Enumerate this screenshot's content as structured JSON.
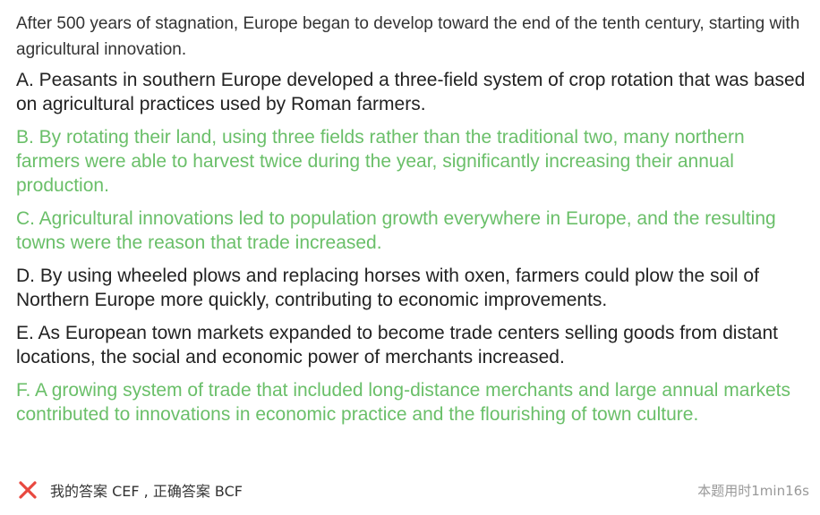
{
  "question": {
    "prompt": "After 500 years of stagnation, Europe began to develop toward the end of the tenth century, starting with agricultural innovation."
  },
  "options": [
    {
      "text": "A. Peasants in southern Europe developed a three-field system of crop rotation that was based on agricultural practices used by Roman farmers.",
      "correct": false
    },
    {
      "text": "B. By rotating their land, using three fields rather than the traditional two, many northern farmers were able to harvest twice during the year, significantly increasing their annual production.",
      "correct": true
    },
    {
      "text": "C. Agricultural innovations led to population growth everywhere in Europe, and the resulting towns were the reason that trade increased.",
      "correct": true
    },
    {
      "text": "D. By using wheeled plows and replacing horses with oxen, farmers could plow the soil of Northern Europe more quickly, contributing to economic improvements.",
      "correct": false
    },
    {
      "text": "E. As European town markets expanded to become trade centers selling goods from distant locations, the social and economic power of merchants increased.",
      "correct": false
    },
    {
      "text": "F. A growing system of trade that included long-distance merchants and large annual markets contributed to innovations in economic practice and the flourishing of town culture.",
      "correct": true
    }
  ],
  "result": {
    "icon": "wrong-x-icon",
    "text": "我的答案 CEF , 正确答案 BCF",
    "time": "本题用时1min16s"
  },
  "colors": {
    "correct_option": "#6abf69",
    "normal_option": "#222222",
    "wrong_icon": "#e8483f",
    "time_text": "#999999"
  }
}
